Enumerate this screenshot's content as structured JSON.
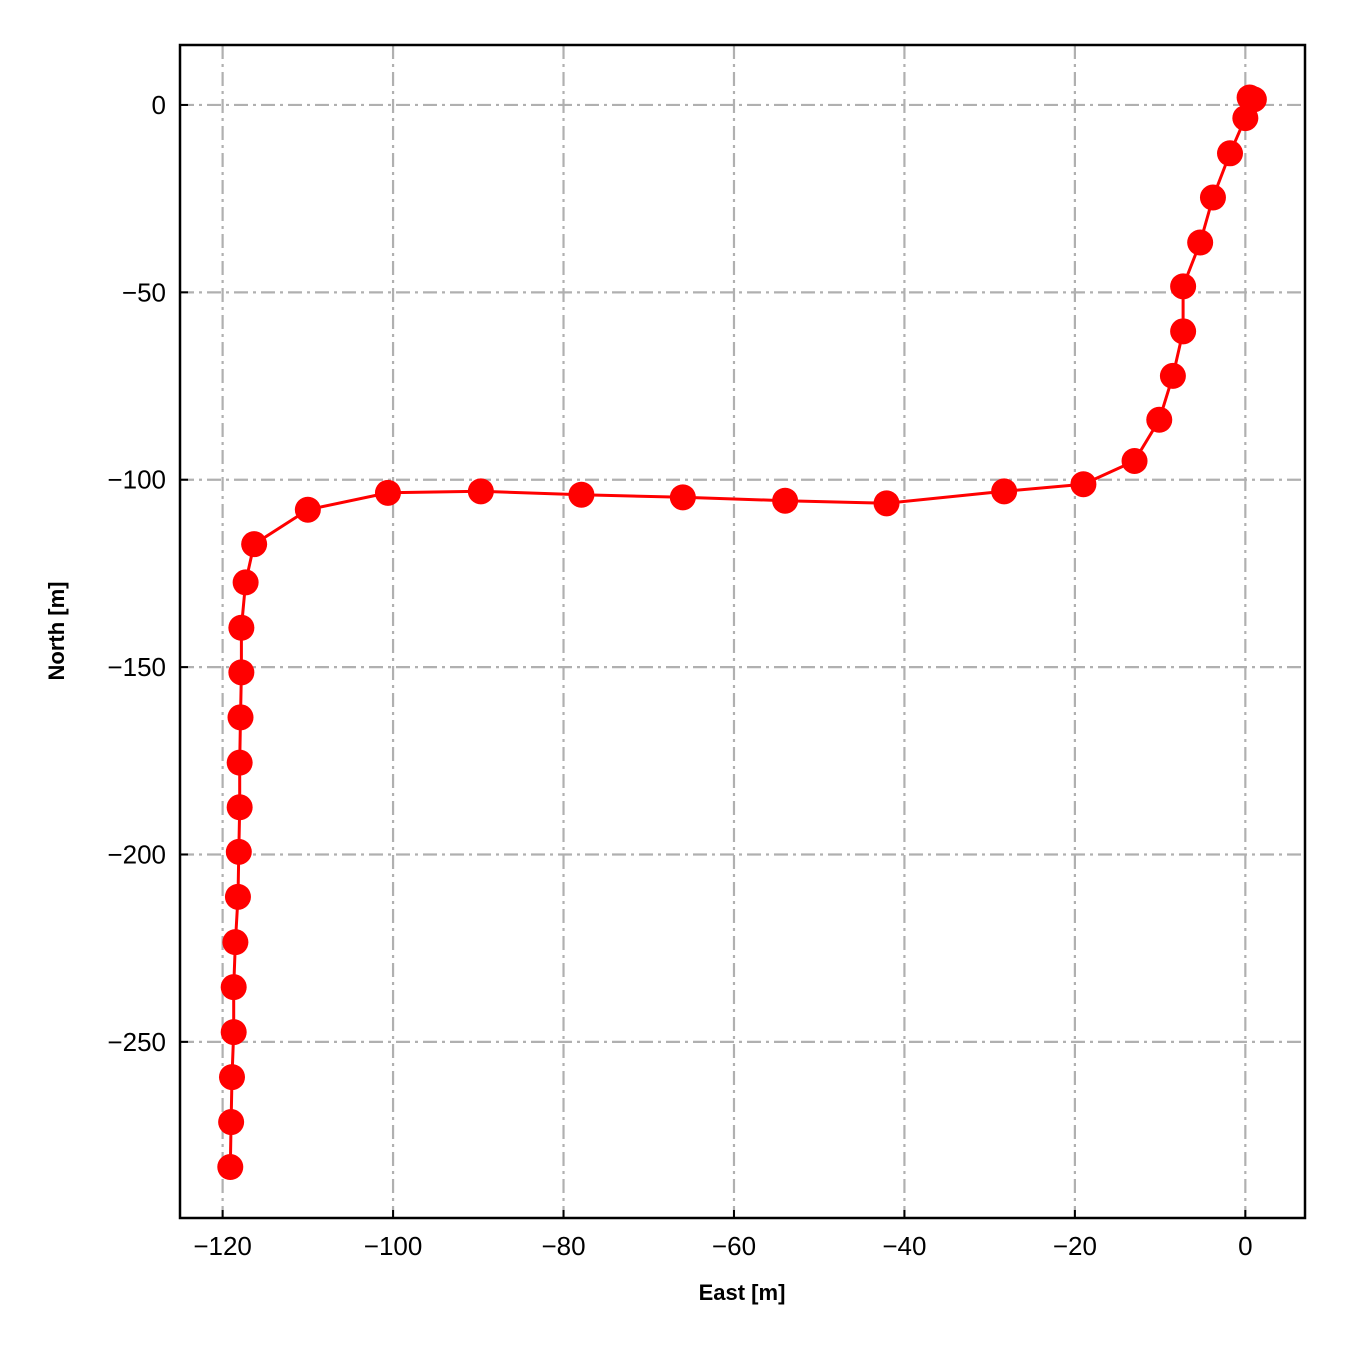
{
  "chart_data": {
    "type": "line",
    "xlabel": "East [m]",
    "ylabel": "North [m]",
    "xlim": [
      -125,
      7
    ],
    "ylim": [
      -297,
      16
    ],
    "xticks": [
      -120,
      -100,
      -80,
      -60,
      -40,
      -20,
      0
    ],
    "yticks": [
      0,
      -50,
      -100,
      -150,
      -200,
      -250
    ],
    "xtick_labels": [
      "−120",
      "−100",
      "−80",
      "−60",
      "−40",
      "−20",
      "0"
    ],
    "ytick_labels": [
      "0",
      "−50",
      "−100",
      "−150",
      "−200",
      "−250"
    ],
    "grid": true,
    "color": "#ff0000",
    "series": [
      {
        "x": [
          1.0,
          0.5,
          0.0,
          -1.8,
          -3.8,
          -5.3,
          -7.3,
          -7.3,
          -8.5,
          -10.1,
          -13.0,
          -19.0,
          -28.3,
          -42.1,
          -54.0,
          -66.0,
          -77.9,
          -89.7,
          -100.6,
          -110.0,
          -116.3,
          -117.3,
          -117.8,
          -117.8,
          -117.9,
          -118.0,
          -118.0,
          -118.1,
          -118.2,
          -118.5,
          -118.7,
          -118.7,
          -118.9,
          -119.0,
          -119.1
        ],
        "y": [
          1.5,
          2.0,
          -3.5,
          -12.9,
          -24.7,
          -36.7,
          -48.4,
          -60.4,
          -72.3,
          -84.0,
          -95.0,
          -101.2,
          -103.1,
          -106.3,
          -105.6,
          -104.7,
          -104.0,
          -103.1,
          -103.5,
          -108.0,
          -117.2,
          -127.4,
          -139.5,
          -151.4,
          -163.4,
          -175.5,
          -187.4,
          -199.3,
          -211.3,
          -223.4,
          -235.4,
          -247.4,
          -259.4,
          -271.4,
          -283.4
        ]
      }
    ]
  }
}
